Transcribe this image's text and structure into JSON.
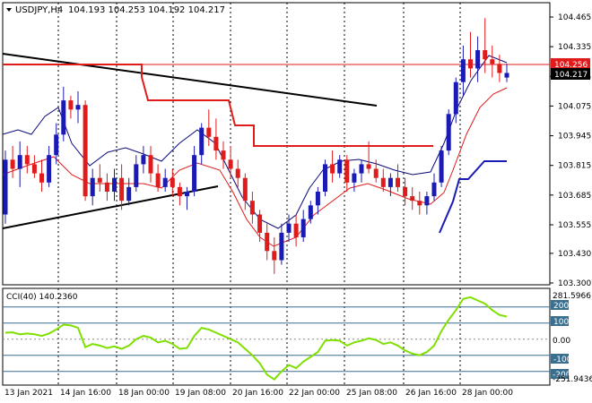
{
  "header": {
    "symbol": "USDJPY,H4",
    "ohlc": "104.193 104.253 104.192 104.217"
  },
  "main_chart": {
    "price_axis": [
      "104.465",
      "104.335",
      "104.205",
      "104.075",
      "103.945",
      "103.815",
      "103.685",
      "103.555",
      "103.430",
      "103.300"
    ],
    "bid_price": "104.217",
    "line_price": "104.256",
    "resistance_line_level": 104.256
  },
  "cci": {
    "label": "CCI(40) 140.2360",
    "current_value": 140.236,
    "scale_max": "281.5966",
    "scale_min": "-251.9436",
    "levels": [
      "200",
      "100",
      "0.00",
      "-100",
      "-200"
    ]
  },
  "time_axis": [
    "13 Jan 2021",
    "14 Jan 16:00",
    "18 Jan 00:00",
    "19 Jan 08:00",
    "20 Jan 16:00",
    "22 Jan 00:00",
    "25 Jan 08:00",
    "26 Jan 16:00",
    "28 Jan 00:00"
  ],
  "colors": {
    "bull": "#1a1ab5",
    "bear": "#e01b1b",
    "trendline": "#000000",
    "support_resistance": "#e01b1b",
    "fast_ma": "#0a0a7a",
    "slow_ma": "#e01b1b",
    "cci_line": "#7fe000",
    "level_line": "#3a6f8f",
    "current_line_bg": "#e01b1b",
    "bid_bg": "#000000"
  },
  "chart_data": {
    "type": "candlestick",
    "candles": [
      [
        103.6,
        103.88,
        103.56,
        103.84
      ],
      [
        103.84,
        103.9,
        103.76,
        103.8
      ],
      [
        103.8,
        103.92,
        103.72,
        103.86
      ],
      [
        103.86,
        103.9,
        103.78,
        103.82
      ],
      [
        103.82,
        103.86,
        103.76,
        103.78
      ],
      [
        103.78,
        103.84,
        103.7,
        103.74
      ],
      [
        103.74,
        103.9,
        103.72,
        103.86
      ],
      [
        103.86,
        104.0,
        103.82,
        103.95
      ],
      [
        103.95,
        104.16,
        103.92,
        104.1
      ],
      [
        104.1,
        104.12,
        104.02,
        104.06
      ],
      [
        104.06,
        104.14,
        104.0,
        104.08
      ],
      [
        104.08,
        104.1,
        103.66,
        103.68
      ],
      [
        103.68,
        103.8,
        103.64,
        103.76
      ],
      [
        103.76,
        103.82,
        103.7,
        103.74
      ],
      [
        103.74,
        103.78,
        103.66,
        103.7
      ],
      [
        103.7,
        103.8,
        103.66,
        103.76
      ],
      [
        103.76,
        103.82,
        103.62,
        103.66
      ],
      [
        103.66,
        103.76,
        103.64,
        103.72
      ],
      [
        103.72,
        103.86,
        103.7,
        103.82
      ],
      [
        103.82,
        103.9,
        103.78,
        103.86
      ],
      [
        103.86,
        103.9,
        103.74,
        103.78
      ],
      [
        103.78,
        103.82,
        103.7,
        103.72
      ],
      [
        103.72,
        103.8,
        103.7,
        103.76
      ],
      [
        103.76,
        103.8,
        103.68,
        103.72
      ],
      [
        103.72,
        103.74,
        103.64,
        103.68
      ],
      [
        103.68,
        103.72,
        103.62,
        103.7
      ],
      [
        103.7,
        103.9,
        103.68,
        103.86
      ],
      [
        103.86,
        104.0,
        103.82,
        103.98
      ],
      [
        103.98,
        104.06,
        103.9,
        103.94
      ],
      [
        103.94,
        104.02,
        103.84,
        103.88
      ],
      [
        103.88,
        103.92,
        103.8,
        103.84
      ],
      [
        103.84,
        103.9,
        103.76,
        103.8
      ],
      [
        103.8,
        103.84,
        103.72,
        103.76
      ],
      [
        103.76,
        103.78,
        103.62,
        103.66
      ],
      [
        103.66,
        103.7,
        103.56,
        103.6
      ],
      [
        103.6,
        103.62,
        103.48,
        103.52
      ],
      [
        103.52,
        103.56,
        103.4,
        103.44
      ],
      [
        103.44,
        103.5,
        103.34,
        103.4
      ],
      [
        103.4,
        103.56,
        103.38,
        103.52
      ],
      [
        103.52,
        103.6,
        103.48,
        103.56
      ],
      [
        103.56,
        103.6,
        103.46,
        103.5
      ],
      [
        103.5,
        103.62,
        103.48,
        103.58
      ],
      [
        103.58,
        103.66,
        103.56,
        103.64
      ],
      [
        103.64,
        103.72,
        103.6,
        103.7
      ],
      [
        103.7,
        103.84,
        103.68,
        103.82
      ],
      [
        103.82,
        103.88,
        103.74,
        103.78
      ],
      [
        103.78,
        103.86,
        103.76,
        103.84
      ],
      [
        103.84,
        103.86,
        103.7,
        103.74
      ],
      [
        103.74,
        103.8,
        103.7,
        103.78
      ],
      [
        103.78,
        103.84,
        103.74,
        103.82
      ],
      [
        103.82,
        103.92,
        103.78,
        103.8
      ],
      [
        103.8,
        103.84,
        103.74,
        103.76
      ],
      [
        103.76,
        103.8,
        103.7,
        103.72
      ],
      [
        103.72,
        103.78,
        103.68,
        103.76
      ],
      [
        103.76,
        103.82,
        103.7,
        103.72
      ],
      [
        103.72,
        103.76,
        103.64,
        103.68
      ],
      [
        103.68,
        103.72,
        103.62,
        103.66
      ],
      [
        103.66,
        103.7,
        103.6,
        103.64
      ],
      [
        103.64,
        103.7,
        103.6,
        103.68
      ],
      [
        103.68,
        103.78,
        103.66,
        103.74
      ],
      [
        103.74,
        103.9,
        103.72,
        103.88
      ],
      [
        103.88,
        104.06,
        103.86,
        104.04
      ],
      [
        104.04,
        104.2,
        104.0,
        104.18
      ],
      [
        104.18,
        104.34,
        104.12,
        104.28
      ],
      [
        104.28,
        104.4,
        104.2,
        104.24
      ],
      [
        104.24,
        104.38,
        104.18,
        104.32
      ],
      [
        104.32,
        104.46,
        104.22,
        104.28
      ],
      [
        104.28,
        104.34,
        104.2,
        104.26
      ],
      [
        104.26,
        104.3,
        104.18,
        104.22
      ],
      [
        104.2,
        104.26,
        104.18,
        104.22
      ]
    ],
    "cci_values": [
      40,
      42,
      30,
      35,
      30,
      20,
      35,
      60,
      90,
      85,
      70,
      -50,
      -30,
      -40,
      -55,
      -45,
      -60,
      -40,
      0,
      20,
      10,
      -20,
      -10,
      -30,
      -60,
      -55,
      20,
      70,
      60,
      40,
      20,
      0,
      -20,
      -60,
      -100,
      -150,
      -220,
      -250,
      -200,
      -160,
      -180,
      -140,
      -110,
      -80,
      -10,
      -5,
      -10,
      -40,
      -20,
      -10,
      5,
      -5,
      -30,
      -20,
      -40,
      -70,
      -90,
      -100,
      -80,
      -40,
      50,
      120,
      180,
      250,
      260,
      240,
      220,
      180,
      150,
      140
    ],
    "cci_ylim": [
      -251.9436,
      281.5966
    ],
    "ylim": [
      103.3,
      104.5
    ]
  }
}
